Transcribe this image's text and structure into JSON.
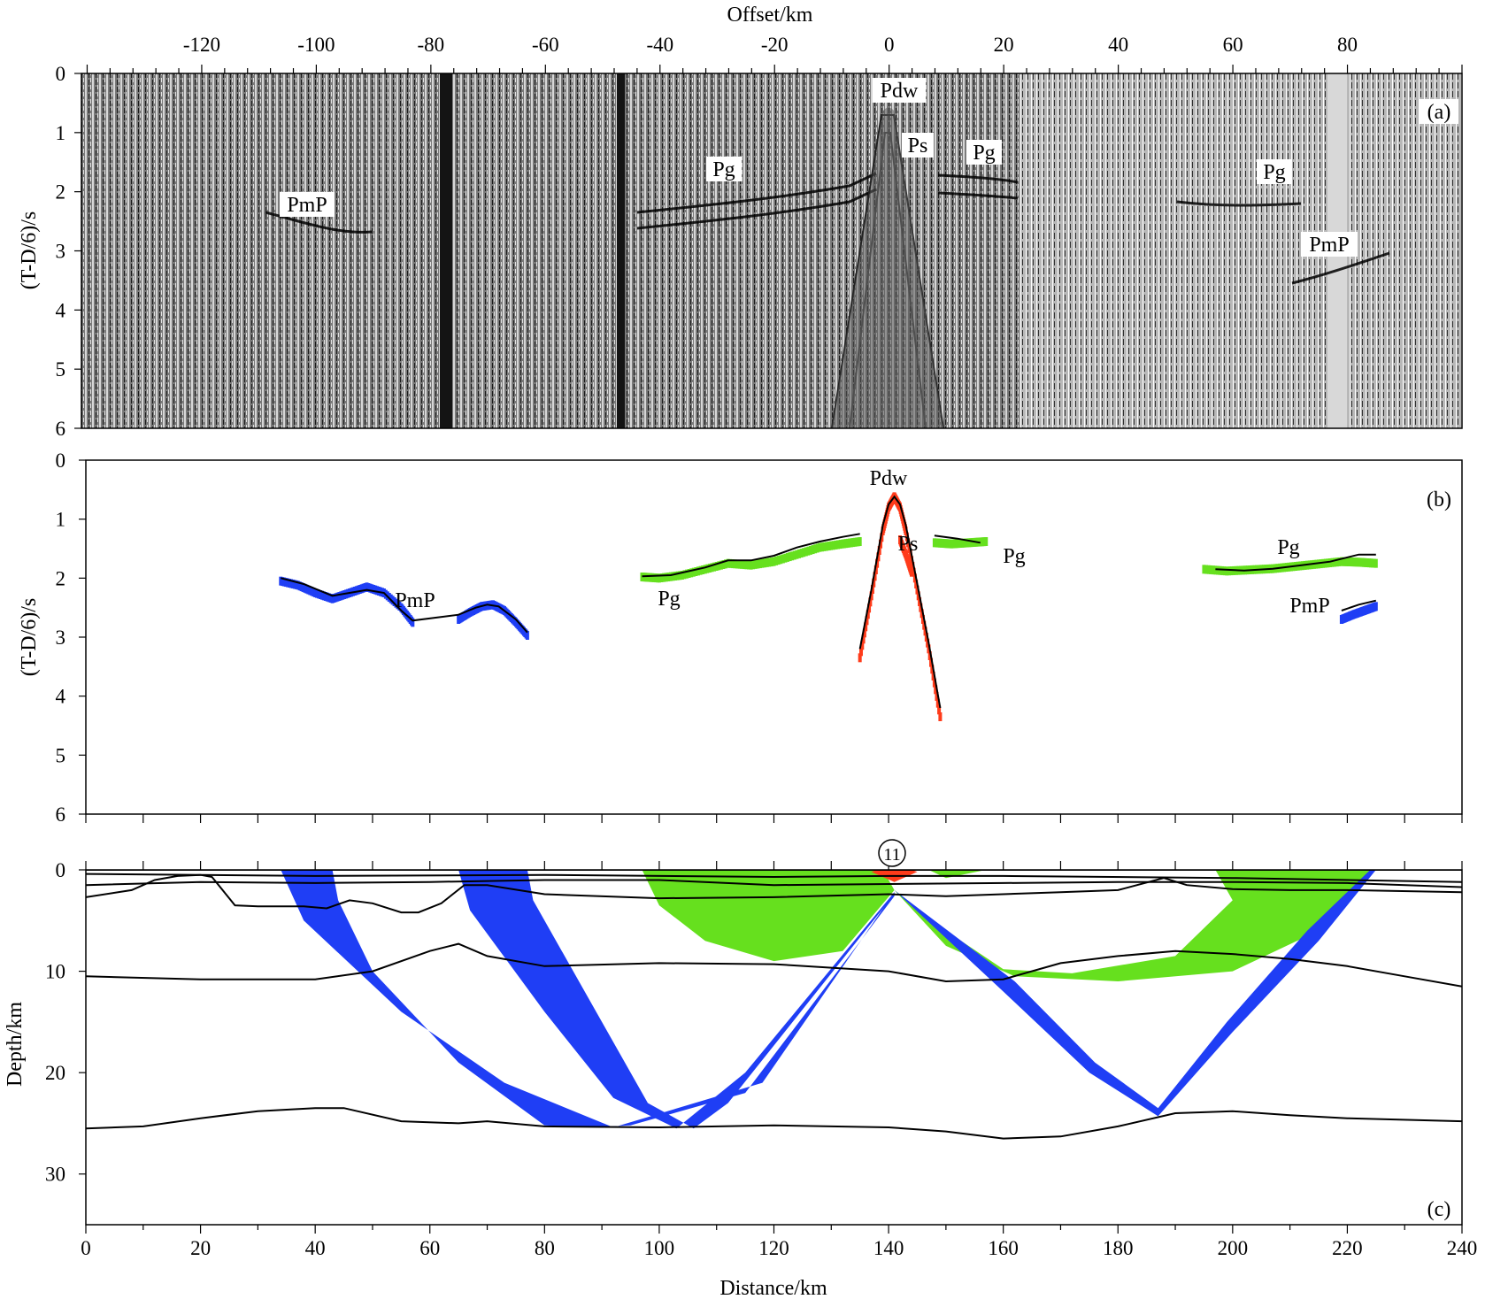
{
  "colors": {
    "pg": "#66e01e",
    "pmp": "#1f3ef5",
    "direct": "#ff3b1a",
    "model": "#000000",
    "panel_a_background": "#8c8c8c"
  },
  "panel_a": {
    "panel_label": "(a)",
    "top_axis_title": "Offset/km",
    "y_axis_title": "(T-D/6)/s",
    "x_ticks": [
      "-120",
      "-100",
      "-80",
      "-60",
      "-40",
      "-20",
      "0",
      "20",
      "40",
      "60",
      "80"
    ],
    "y_ticks": [
      "0",
      "1",
      "2",
      "3",
      "4",
      "5",
      "6"
    ],
    "phase_labels": [
      "Pdw",
      "Ps",
      "Pg",
      "Pg",
      "Pg",
      "PmP",
      "PmP"
    ]
  },
  "panel_b": {
    "panel_label": "(b)",
    "y_axis_title": "(T-D/6)/s",
    "y_ticks": [
      "0",
      "1",
      "2",
      "3",
      "4",
      "5",
      "6"
    ],
    "phase_labels": [
      "Pdw",
      "Ps",
      "Pg",
      "Pg",
      "Pg",
      "PmP",
      "PmP"
    ]
  },
  "panel_c": {
    "panel_label": "(c)",
    "station_label": "11",
    "x_axis_title": "Distance/km",
    "y_axis_title": "Depth/km",
    "x_ticks": [
      "0",
      "20",
      "40",
      "60",
      "80",
      "100",
      "120",
      "140",
      "160",
      "180",
      "200",
      "220",
      "240"
    ],
    "y_ticks": [
      "0",
      "10",
      "20",
      "30"
    ]
  },
  "chart_data": [
    {
      "type": "heatmap",
      "description_of_axes": "seismic record section",
      "xlabel": "Offset/km",
      "ylabel": "(T-D/6)/s",
      "xlim": [
        -141,
        100
      ],
      "ylim": [
        6,
        0
      ],
      "shot_distance_km": 141,
      "phases": [
        "Pdw",
        "Ps",
        "Pg",
        "PmP"
      ]
    },
    {
      "type": "scatter",
      "xlabel": "",
      "ylabel": "(T-D/6)/s",
      "xlim": [
        0,
        240
      ],
      "ylim": [
        6,
        0
      ],
      "series": [
        {
          "name": "PmP",
          "x": [
            34,
            37,
            40,
            43,
            46,
            49,
            52,
            55,
            57
          ],
          "y": [
            2.05,
            2.12,
            2.25,
            2.35,
            2.25,
            2.15,
            2.25,
            2.5,
            2.75
          ]
        },
        {
          "name": "PmP",
          "x": [
            65,
            67,
            69,
            71,
            73,
            75,
            77
          ],
          "y": [
            2.7,
            2.58,
            2.48,
            2.45,
            2.55,
            2.75,
            2.97
          ]
        },
        {
          "name": "Pg",
          "x": [
            97,
            100,
            104,
            108,
            112,
            116,
            120,
            124,
            128,
            132,
            135
          ],
          "y": [
            1.98,
            2.0,
            1.95,
            1.85,
            1.75,
            1.78,
            1.72,
            1.6,
            1.48,
            1.42,
            1.38
          ]
        },
        {
          "name": "Pdw",
          "x": [
            135,
            137,
            139,
            140,
            141,
            142,
            143,
            145,
            147,
            149
          ],
          "y": [
            3.35,
            2.3,
            1.2,
            0.8,
            0.62,
            0.8,
            1.2,
            2.2,
            3.2,
            4.35
          ]
        },
        {
          "name": "Ps",
          "x": [
            142,
            143,
            144
          ],
          "y": [
            1.35,
            1.6,
            1.9
          ]
        },
        {
          "name": "Pg",
          "x": [
            148,
            151,
            154,
            157
          ],
          "y": [
            1.4,
            1.42,
            1.4,
            1.38
          ]
        },
        {
          "name": "Pg",
          "x": [
            195,
            199,
            203,
            207,
            211,
            215,
            219,
            222,
            225
          ],
          "y": [
            1.85,
            1.88,
            1.86,
            1.84,
            1.8,
            1.76,
            1.72,
            1.73,
            1.75
          ]
        },
        {
          "name": "PmP",
          "x": [
            219,
            221,
            223,
            225
          ],
          "y": [
            2.7,
            2.62,
            2.55,
            2.48
          ]
        }
      ],
      "model_curves": [
        {
          "name": "PmP",
          "x": [
            34,
            38,
            43,
            46,
            49,
            52,
            55,
            57,
            65,
            68,
            70,
            72,
            75,
            77
          ],
          "y": [
            2.0,
            2.1,
            2.3,
            2.25,
            2.2,
            2.25,
            2.55,
            2.72,
            2.62,
            2.5,
            2.45,
            2.48,
            2.7,
            2.92
          ]
        },
        {
          "name": "Pg",
          "x": [
            97,
            102,
            108,
            112,
            116,
            120,
            124,
            128,
            132,
            135
          ],
          "y": [
            1.97,
            1.95,
            1.82,
            1.7,
            1.7,
            1.62,
            1.48,
            1.38,
            1.3,
            1.25
          ]
        },
        {
          "name": "Pdw",
          "x": [
            135,
            137,
            139,
            140,
            141,
            142,
            143,
            145,
            147,
            149
          ],
          "y": [
            3.2,
            2.2,
            1.1,
            0.75,
            0.62,
            0.75,
            1.1,
            2.1,
            3.1,
            4.2
          ]
        },
        {
          "name": "Pg",
          "x": [
            148,
            152,
            156
          ],
          "y": [
            1.28,
            1.33,
            1.4
          ]
        },
        {
          "name": "Pg",
          "x": [
            197,
            202,
            207,
            212,
            217,
            222,
            225
          ],
          "y": [
            1.85,
            1.87,
            1.84,
            1.78,
            1.72,
            1.6,
            1.6
          ]
        },
        {
          "name": "PmP",
          "x": [
            219,
            222,
            225
          ],
          "y": [
            2.55,
            2.45,
            2.38
          ]
        }
      ]
    },
    {
      "type": "line",
      "xlabel": "Distance/km",
      "ylabel": "Depth/km",
      "xlim": [
        0,
        240
      ],
      "ylim": [
        35,
        0
      ],
      "shot": {
        "label": "11",
        "x": 141,
        "depth": 0
      },
      "interfaces": [
        {
          "x": [
            0,
            240
          ],
          "y": [
            0.0,
            0.0
          ]
        },
        {
          "x": [
            0,
            40,
            80,
            120,
            140,
            160,
            200,
            240
          ],
          "y": [
            0.4,
            0.6,
            0.5,
            0.7,
            0.6,
            0.6,
            0.8,
            1.2
          ]
        },
        {
          "x": [
            0,
            20,
            40,
            60,
            80,
            100,
            120,
            140,
            160,
            180,
            200,
            220,
            240
          ],
          "y": [
            1.5,
            1.2,
            1.3,
            1.2,
            1.0,
            1.0,
            1.5,
            1.4,
            1.3,
            1.2,
            1.2,
            1.3,
            1.7
          ]
        },
        {
          "x": [
            0,
            8,
            12,
            16,
            20,
            22,
            26,
            30,
            38,
            42,
            46,
            50,
            55,
            58,
            62,
            66,
            70,
            80,
            100,
            120,
            140,
            150,
            160,
            170,
            180,
            188,
            192,
            200,
            210,
            220,
            240
          ],
          "y": [
            2.7,
            2.0,
            1.0,
            0.6,
            0.5,
            0.7,
            3.5,
            3.6,
            3.6,
            3.8,
            3.0,
            3.3,
            4.2,
            4.2,
            3.3,
            1.5,
            1.5,
            2.4,
            2.8,
            2.7,
            2.4,
            2.6,
            2.4,
            2.2,
            2.0,
            0.8,
            1.5,
            1.9,
            2.0,
            2.0,
            2.2
          ]
        },
        {
          "x": [
            0,
            20,
            40,
            50,
            60,
            65,
            70,
            80,
            100,
            120,
            140,
            150,
            160,
            170,
            180,
            190,
            200,
            210,
            220,
            230,
            240
          ],
          "y": [
            10.5,
            10.8,
            10.8,
            10.0,
            8.0,
            7.3,
            8.5,
            9.5,
            9.2,
            9.3,
            10.0,
            11.0,
            10.8,
            9.2,
            8.5,
            8.0,
            8.3,
            8.8,
            9.5,
            10.5,
            11.5
          ]
        },
        {
          "x": [
            0,
            10,
            20,
            30,
            40,
            45,
            55,
            65,
            70,
            80,
            100,
            120,
            140,
            150,
            160,
            170,
            180,
            190,
            200,
            210,
            220,
            240
          ],
          "y": [
            25.5,
            25.3,
            24.5,
            23.8,
            23.5,
            23.5,
            24.8,
            25.0,
            24.8,
            25.3,
            25.4,
            25.2,
            25.4,
            25.8,
            26.5,
            26.3,
            25.3,
            24.0,
            23.8,
            24.2,
            24.5,
            24.8
          ]
        }
      ]
    }
  ]
}
